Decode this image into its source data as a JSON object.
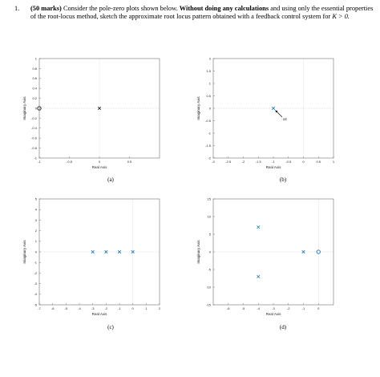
{
  "question": {
    "number": "1.",
    "marks": "(50 marks)",
    "text_1": " Consider the pole-zero plots shown below. ",
    "bold": "Without doing any calculations",
    "text_2": " and using only the essential properties of the root-locus method, sketch the approximate root locus pattern obtained with a feedback control system for ",
    "k_condition": "K > 0."
  },
  "colors": {
    "pole": "#1f77b4",
    "grid": "#e6e6e6",
    "axis": "#555555"
  },
  "plots": [
    {
      "id": "a",
      "label": "(a)",
      "xlabel": "Real Axis",
      "ylabel": "Imaginary Axis",
      "xlim": [
        -1,
        1
      ],
      "ylim": [
        -1,
        1
      ],
      "xticks": [
        -1,
        -0.5,
        0,
        0.5
      ],
      "xtick_labels": [
        "-1",
        "-0.5",
        "0",
        "0.5"
      ],
      "yticks": [
        -1,
        -0.8,
        -0.6,
        -0.4,
        -0.2,
        0,
        0.2,
        0.4,
        0.6,
        0.8,
        1
      ],
      "ytick_labels": [
        "-1",
        "-0.8",
        "-0.6",
        "-0.4",
        "-0.2",
        "0",
        "0.2",
        "0.4",
        "0.6",
        "0.8",
        "1"
      ],
      "poles": [
        [
          0,
          0
        ]
      ],
      "zeros": [
        [
          -1,
          0
        ]
      ],
      "annotation": ""
    },
    {
      "id": "b",
      "label": "(b)",
      "xlabel": "Real Axis",
      "ylabel": "Imaginary Axis",
      "xlim": [
        -3,
        1
      ],
      "ylim": [
        -2,
        2
      ],
      "xticks": [
        -3,
        -2.5,
        -2,
        -1.5,
        -1,
        -0.5,
        0,
        0.5,
        1
      ],
      "xtick_labels": [
        "-3",
        "-2.5",
        "-2",
        "-1.5",
        "-1",
        "-0.5",
        "0",
        "0.5",
        "1"
      ],
      "yticks": [
        -2,
        -1.5,
        -1,
        -0.5,
        0,
        0.5,
        1,
        1.5,
        2
      ],
      "ytick_labels": [
        "-2",
        "-1.5",
        "-1",
        "-0.5",
        "0",
        "0.5",
        "1",
        "1.5",
        "2"
      ],
      "poles": [
        [
          -1,
          0
        ]
      ],
      "zeros": [],
      "annotation": "x2"
    },
    {
      "id": "c",
      "label": "(c)",
      "xlabel": "Real Axis",
      "ylabel": "Imaginary Axis",
      "xlim": [
        -7,
        2
      ],
      "ylim": [
        -5,
        5
      ],
      "xticks": [
        -7,
        -6,
        -5,
        -4,
        -3,
        -2,
        -1,
        0,
        1,
        2
      ],
      "xtick_labels": [
        "-7",
        "-6",
        "-5",
        "-4",
        "-3",
        "-2",
        "-1",
        "0",
        "1",
        "2"
      ],
      "yticks": [
        -5,
        -4,
        -3,
        -2,
        -1,
        0,
        1,
        2,
        3,
        4,
        5
      ],
      "ytick_labels": [
        "-5",
        "-4",
        "-3",
        "-2",
        "-1",
        "0",
        "1",
        "2",
        "3",
        "4",
        "5"
      ],
      "poles": [
        [
          -3,
          0
        ],
        [
          -2,
          0
        ],
        [
          -1,
          0
        ],
        [
          0,
          0
        ]
      ],
      "zeros": [],
      "annotation": ""
    },
    {
      "id": "d",
      "label": "(d)",
      "xlabel": "Real Axis",
      "ylabel": "Imaginary Axis",
      "xlim": [
        -7,
        1
      ],
      "ylim": [
        -15,
        15
      ],
      "xticks": [
        -6,
        -5,
        -4,
        -3,
        -2,
        -1,
        0
      ],
      "xtick_labels": [
        "-6",
        "-5",
        "-4",
        "-3",
        "-2",
        "-1",
        "0"
      ],
      "yticks": [
        -15,
        -10,
        -5,
        0,
        5,
        10,
        15
      ],
      "ytick_labels": [
        "-15",
        "-10",
        "-5",
        "0",
        "5",
        "10",
        "15"
      ],
      "poles": [
        [
          -4,
          7
        ],
        [
          -4,
          -7
        ],
        [
          -1,
          0
        ]
      ],
      "zeros": [
        [
          0,
          0
        ]
      ],
      "annotation": ""
    }
  ]
}
